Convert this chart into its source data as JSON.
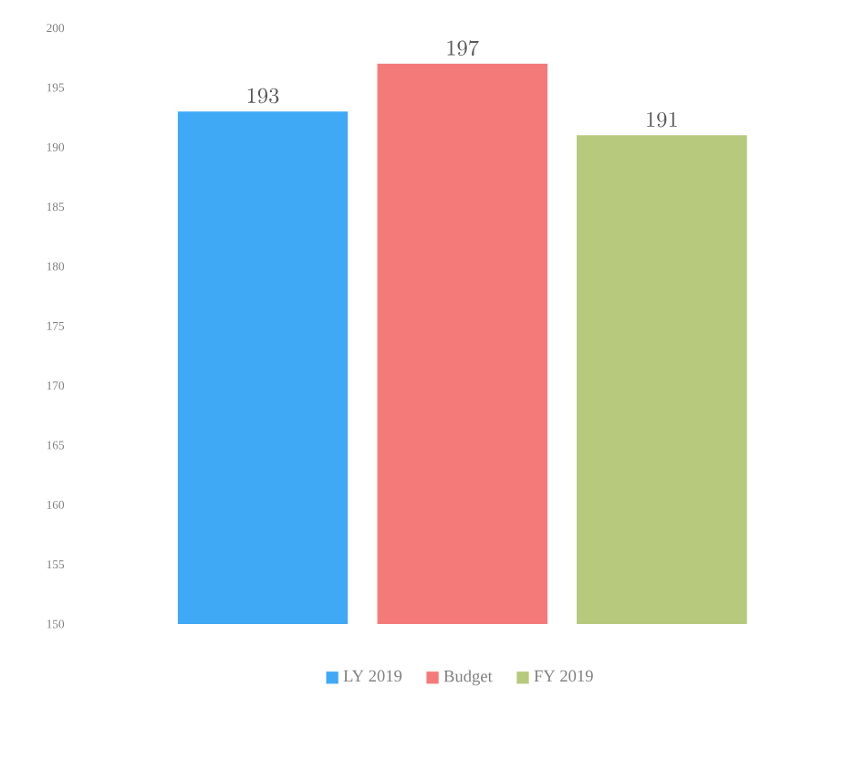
{
  "chart_data": {
    "type": "bar",
    "categories": [
      null
    ],
    "series": [
      {
        "name": "LY 2019",
        "color": "#3fa9f5",
        "values": [
          193
        ]
      },
      {
        "name": "Budget",
        "color": "#f47a7a",
        "values": [
          197
        ]
      },
      {
        "name": "FY 2019",
        "color": "#b7c97c",
        "values": [
          191
        ]
      }
    ],
    "ylim": [
      150,
      200
    ],
    "yticks": [
      150,
      155,
      160,
      165,
      170,
      175,
      180,
      185,
      190,
      195,
      200
    ],
    "data_labels": true,
    "legend": "bottom",
    "grid": false
  }
}
